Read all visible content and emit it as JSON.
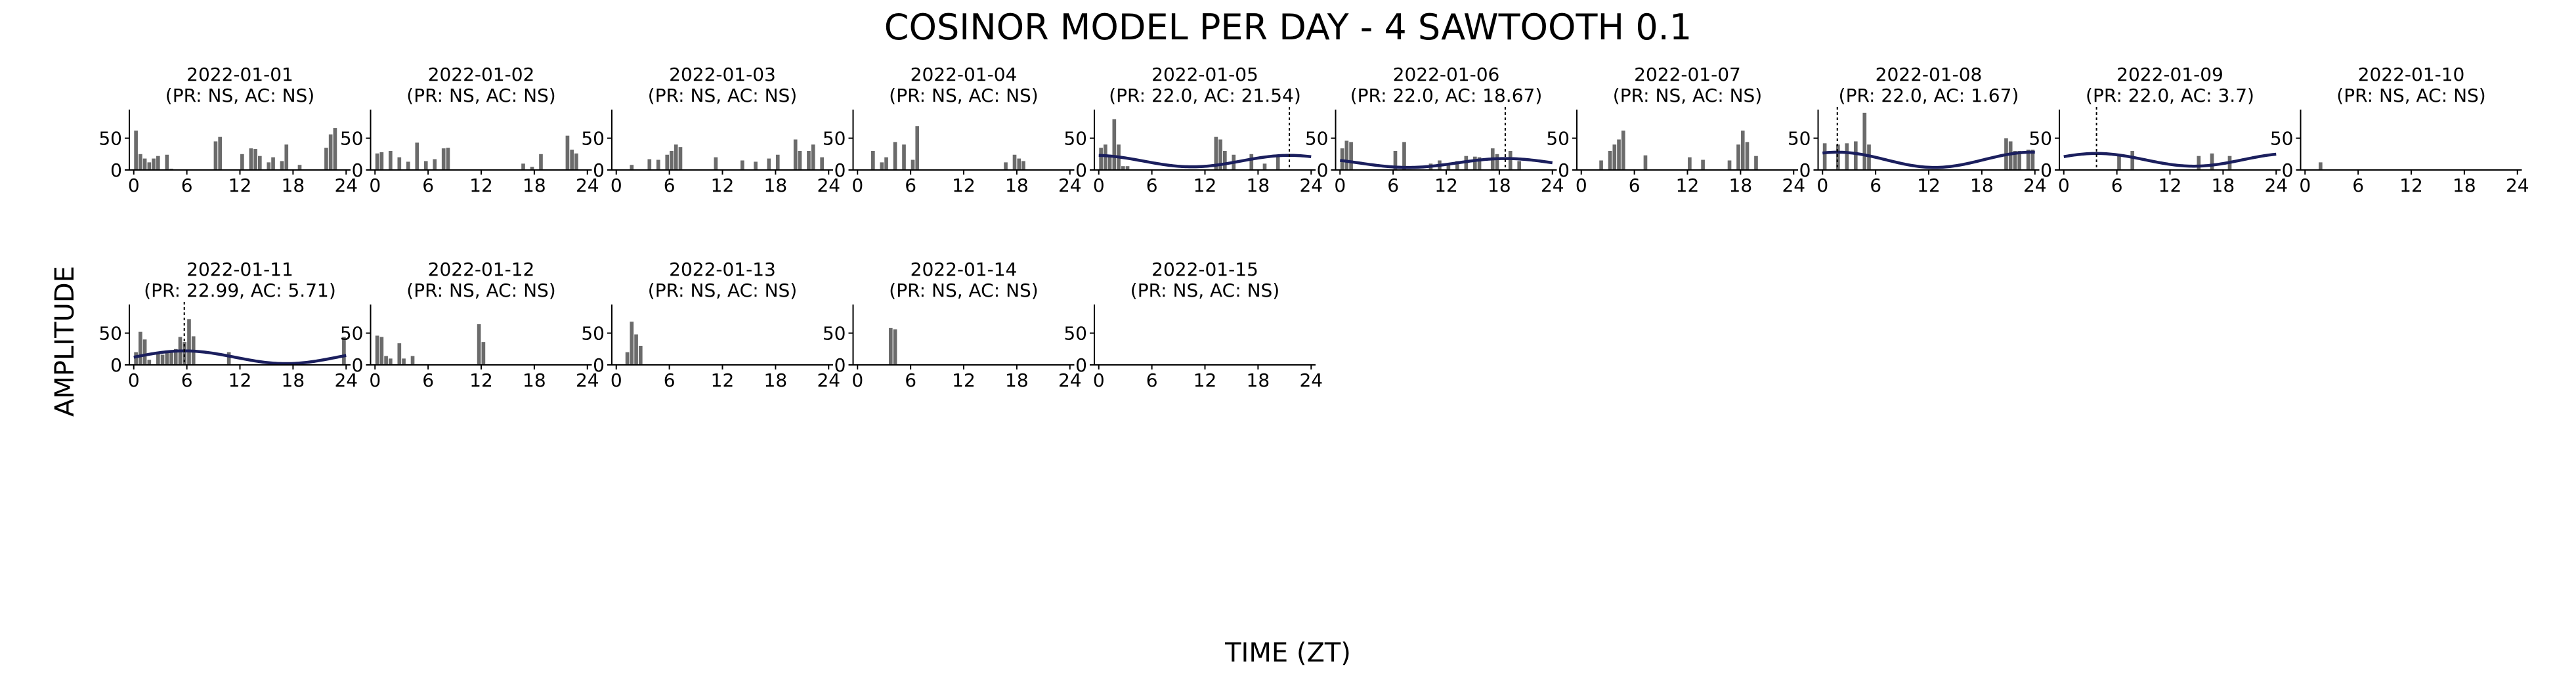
{
  "figure": {
    "title": "COSINOR MODEL PER DAY - 4 SAWTOOTH 0.1",
    "xlabel": "TIME (ZT)",
    "ylabel": "AMPLITUDE"
  },
  "colors": {
    "bar": "#6b6b6b",
    "fit": "#1b1f5e",
    "axis": "#000000"
  },
  "chart_data": {
    "type": "bar",
    "layout": "small-multiples",
    "xlim": [
      -0.5,
      24.5
    ],
    "ylim": [
      0,
      95
    ],
    "xticks": [
      0,
      6,
      12,
      18,
      24
    ],
    "yticks": [
      0,
      50
    ],
    "bin_hours": 0.5,
    "panels": [
      {
        "title": "2022-01-01",
        "subtitle": "(PR: NS, AC: NS)",
        "fit": null,
        "values": [
          62,
          25,
          18,
          12,
          18,
          22,
          0,
          24,
          2,
          0,
          0,
          0,
          0,
          0,
          0,
          0,
          0,
          0,
          45,
          52,
          0,
          0,
          0,
          0,
          25,
          0,
          34,
          33,
          22,
          0,
          12,
          20,
          0,
          14,
          40,
          0,
          0,
          8,
          0,
          0,
          0,
          0,
          0,
          35,
          56,
          66,
          0,
          0
        ]
      },
      {
        "title": "2022-01-02",
        "subtitle": "(PR: NS, AC: NS)",
        "fit": null,
        "values": [
          26,
          28,
          0,
          30,
          0,
          20,
          0,
          13,
          0,
          43,
          0,
          14,
          0,
          17,
          0,
          34,
          35,
          0,
          0,
          0,
          0,
          0,
          0,
          0,
          0,
          0,
          0,
          0,
          0,
          0,
          0,
          0,
          0,
          10,
          0,
          5,
          0,
          25,
          0,
          0,
          0,
          0,
          0,
          54,
          32,
          26,
          0,
          0
        ]
      },
      {
        "title": "2022-01-03",
        "subtitle": "(PR: NS, AC: NS)",
        "fit": null,
        "values": [
          0,
          0,
          0,
          8,
          0,
          0,
          0,
          17,
          0,
          16,
          0,
          24,
          30,
          40,
          36,
          0,
          0,
          0,
          0,
          0,
          0,
          0,
          20,
          0,
          0,
          0,
          0,
          0,
          15,
          0,
          0,
          13,
          0,
          0,
          18,
          0,
          24,
          0,
          0,
          0,
          48,
          30,
          0,
          30,
          40,
          0,
          20,
          0
        ]
      },
      {
        "title": "2022-01-04",
        "subtitle": "(PR: NS, AC: NS)",
        "fit": null,
        "values": [
          0,
          0,
          0,
          30,
          0,
          12,
          20,
          0,
          44,
          0,
          40,
          0,
          16,
          69,
          0,
          0,
          0,
          0,
          0,
          0,
          0,
          0,
          0,
          0,
          0,
          0,
          0,
          0,
          0,
          0,
          0,
          0,
          0,
          12,
          0,
          24,
          18,
          14,
          0,
          0,
          0,
          0,
          0,
          0,
          0,
          0,
          0,
          0
        ]
      },
      {
        "title": "2022-01-05",
        "subtitle": "(PR: 22.0, AC: 21.54)",
        "fit": {
          "mesor": 14,
          "amp": 9,
          "acrophase": 21.54,
          "period": 22.0
        },
        "values": [
          35,
          40,
          24,
          80,
          40,
          6,
          6,
          0,
          0,
          0,
          0,
          0,
          0,
          0,
          0,
          0,
          0,
          0,
          0,
          0,
          0,
          0,
          0,
          0,
          0,
          0,
          52,
          48,
          30,
          0,
          24,
          0,
          0,
          0,
          25,
          0,
          0,
          10,
          0,
          0,
          22,
          0,
          0,
          0,
          0,
          0,
          0,
          0
        ]
      },
      {
        "title": "2022-01-06",
        "subtitle": "(PR: 22.0, AC: 18.67)",
        "fit": {
          "mesor": 11,
          "amp": 7,
          "acrophase": 18.67,
          "period": 22.0
        },
        "values": [
          34,
          46,
          44,
          0,
          0,
          0,
          0,
          0,
          0,
          0,
          0,
          0,
          30,
          0,
          44,
          0,
          0,
          0,
          0,
          0,
          10,
          0,
          15,
          0,
          10,
          0,
          14,
          0,
          22,
          0,
          21,
          20,
          0,
          0,
          34,
          25,
          0,
          0,
          30,
          0,
          14,
          0,
          0,
          0,
          0,
          0,
          0,
          0
        ]
      },
      {
        "title": "2022-01-07",
        "subtitle": "(PR: NS, AC: NS)",
        "fit": null,
        "values": [
          0,
          0,
          0,
          0,
          15,
          0,
          30,
          40,
          48,
          62,
          0,
          0,
          0,
          0,
          23,
          0,
          0,
          0,
          0,
          0,
          0,
          0,
          0,
          0,
          20,
          0,
          0,
          16,
          0,
          0,
          0,
          0,
          0,
          15,
          0,
          40,
          62,
          44,
          0,
          22,
          0,
          0,
          0,
          0,
          0,
          0,
          0,
          0
        ]
      },
      {
        "title": "2022-01-08",
        "subtitle": "(PR: 22.0, AC: 1.67)",
        "fit": {
          "mesor": 16,
          "amp": 12,
          "acrophase": 1.67,
          "period": 22.0
        },
        "values": [
          42,
          0,
          0,
          40,
          0,
          42,
          0,
          45,
          0,
          90,
          40,
          0,
          0,
          0,
          0,
          0,
          0,
          0,
          0,
          0,
          0,
          0,
          0,
          0,
          0,
          0,
          0,
          0,
          0,
          0,
          0,
          0,
          0,
          0,
          0,
          0,
          0,
          0,
          0,
          0,
          0,
          50,
          45,
          30,
          30,
          0,
          32,
          32
        ]
      },
      {
        "title": "2022-01-09",
        "subtitle": "(PR: 22.0, AC: 3.7)",
        "fit": {
          "mesor": 16,
          "amp": 10,
          "acrophase": 3.7,
          "period": 22.0
        },
        "values": [
          0,
          0,
          0,
          0,
          0,
          0,
          0,
          0,
          0,
          0,
          0,
          0,
          22,
          0,
          0,
          30,
          0,
          0,
          0,
          0,
          0,
          0,
          0,
          0,
          0,
          0,
          0,
          0,
          0,
          0,
          22,
          0,
          0,
          26,
          0,
          0,
          0,
          22,
          0,
          0,
          0,
          0,
          0,
          0,
          0,
          0,
          0,
          0
        ]
      },
      {
        "title": "2022-01-10",
        "subtitle": "(PR: NS, AC: NS)",
        "fit": null,
        "values": [
          0,
          0,
          0,
          12,
          0,
          0,
          0,
          0,
          0,
          0,
          0,
          0,
          0,
          0,
          0,
          0,
          0,
          0,
          0,
          0,
          0,
          0,
          0,
          0,
          0,
          0,
          0,
          0,
          0,
          0,
          0,
          0,
          0,
          0,
          0,
          0,
          0,
          0,
          0,
          0,
          0,
          0,
          0,
          0,
          0,
          0,
          0,
          0
        ]
      },
      {
        "title": "2022-01-11",
        "subtitle": "(PR: 22.99, AC: 5.71)",
        "fit": {
          "mesor": 12,
          "amp": 10,
          "acrophase": 5.71,
          "period": 22.99
        },
        "values": [
          20,
          52,
          40,
          8,
          0,
          20,
          16,
          20,
          20,
          25,
          44,
          36,
          72,
          45,
          0,
          0,
          0,
          0,
          0,
          0,
          0,
          20,
          0,
          0,
          0,
          0,
          0,
          0,
          0,
          0,
          0,
          0,
          0,
          0,
          0,
          0,
          0,
          0,
          0,
          0,
          0,
          0,
          0,
          0,
          0,
          0,
          0,
          44
        ]
      },
      {
        "title": "2022-01-12",
        "subtitle": "(PR: NS, AC: NS)",
        "fit": null,
        "values": [
          46,
          44,
          14,
          10,
          0,
          34,
          10,
          0,
          14,
          0,
          0,
          0,
          0,
          0,
          0,
          0,
          0,
          0,
          0,
          0,
          0,
          0,
          0,
          64,
          36,
          0,
          0,
          0,
          0,
          0,
          0,
          0,
          0,
          0,
          0,
          0,
          0,
          0,
          0,
          0,
          0,
          0,
          0,
          0,
          0,
          0,
          0,
          0
        ]
      },
      {
        "title": "2022-01-13",
        "subtitle": "(PR: NS, AC: NS)",
        "fit": null,
        "values": [
          0,
          0,
          20,
          68,
          48,
          30,
          0,
          0,
          0,
          0,
          0,
          0,
          0,
          0,
          0,
          0,
          0,
          0,
          0,
          0,
          0,
          0,
          0,
          0,
          0,
          0,
          0,
          0,
          0,
          0,
          0,
          0,
          0,
          0,
          0,
          0,
          0,
          0,
          0,
          0,
          0,
          0,
          0,
          0,
          0,
          0,
          0,
          0
        ]
      },
      {
        "title": "2022-01-14",
        "subtitle": "(PR: NS, AC: NS)",
        "fit": null,
        "values": [
          0,
          0,
          0,
          0,
          0,
          0,
          0,
          58,
          56,
          0,
          0,
          0,
          0,
          0,
          0,
          0,
          0,
          0,
          0,
          0,
          0,
          0,
          0,
          0,
          0,
          0,
          0,
          0,
          0,
          0,
          0,
          0,
          0,
          0,
          0,
          0,
          0,
          0,
          0,
          0,
          0,
          0,
          0,
          0,
          0,
          0,
          0,
          0
        ]
      },
      {
        "title": "2022-01-15",
        "subtitle": "(PR: NS, AC: NS)",
        "fit": null,
        "values": [
          0,
          0,
          0,
          0,
          0,
          0,
          0,
          0,
          0,
          0,
          0,
          0,
          0,
          0,
          0,
          0,
          0,
          0,
          0,
          0,
          0,
          0,
          0,
          0,
          0,
          0,
          0,
          0,
          0,
          0,
          0,
          0,
          0,
          0,
          0,
          0,
          0,
          0,
          0,
          0,
          0,
          0,
          0,
          0,
          0,
          0,
          0,
          0
        ]
      }
    ]
  }
}
